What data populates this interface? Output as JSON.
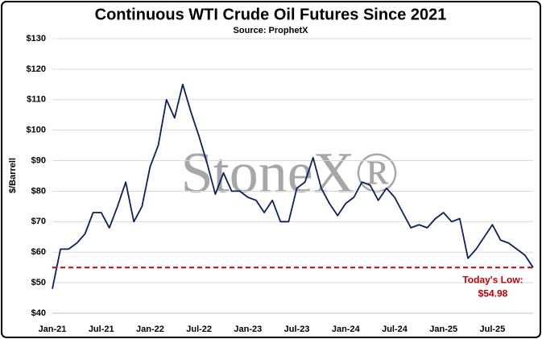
{
  "chart_data": {
    "type": "line",
    "title": "Continuous WTI Crude Oil Futures Since 2021",
    "subtitle": "Source: ProphetX",
    "y_label": "$/Barrell",
    "watermark": "StoneX®",
    "x": [
      "Jan-21",
      "Feb-21",
      "Mar-21",
      "Apr-21",
      "May-21",
      "Jun-21",
      "Jul-21",
      "Aug-21",
      "Sep-21",
      "Oct-21",
      "Nov-21",
      "Dec-21",
      "Jan-22",
      "Feb-22",
      "Mar-22",
      "Apr-22",
      "May-22",
      "Jun-22",
      "Jul-22",
      "Aug-22",
      "Sep-22",
      "Oct-22",
      "Nov-22",
      "Dec-22",
      "Jan-23",
      "Feb-23",
      "Mar-23",
      "Apr-23",
      "May-23",
      "Jun-23",
      "Jul-23",
      "Aug-23",
      "Sep-23",
      "Oct-23",
      "Nov-23",
      "Dec-23",
      "Jan-24",
      "Feb-24",
      "Mar-24",
      "Apr-24",
      "May-24",
      "Jun-24",
      "Jul-24",
      "Aug-24",
      "Sep-24",
      "Oct-24",
      "Nov-24",
      "Dec-24",
      "Jan-25",
      "Feb-25",
      "Mar-25",
      "Apr-25",
      "May-25",
      "Jun-25",
      "Jul-25",
      "Aug-25",
      "Sep-25",
      "Oct-25",
      "Nov-25",
      "Dec-25"
    ],
    "xticks": [
      "Jan-21",
      "Jul-21",
      "Jan-22",
      "Jul-22",
      "Jan-23",
      "Jul-23",
      "Jan-24",
      "Jul-24",
      "Jan-25",
      "Jul-25"
    ],
    "series": [
      {
        "name": "WTI",
        "color": "#0d1f5c",
        "values": [
          48,
          61,
          61,
          63,
          66,
          73,
          73,
          68,
          75,
          83,
          70,
          75,
          88,
          95,
          110,
          104,
          115,
          106,
          98,
          89,
          79,
          86,
          80,
          80,
          78,
          77,
          73,
          77,
          70,
          70,
          81,
          83,
          91,
          81,
          76,
          72,
          76,
          78,
          83,
          82,
          77,
          81,
          78,
          73,
          68,
          69,
          68,
          71,
          73,
          70,
          71,
          58,
          61,
          65,
          69,
          64,
          63,
          61,
          59,
          54.98
        ]
      }
    ],
    "ylim": [
      40,
      130
    ],
    "yticks": [
      {
        "value": 40,
        "label": "$40"
      },
      {
        "value": 50,
        "label": "$50"
      },
      {
        "value": 60,
        "label": "$60"
      },
      {
        "value": 70,
        "label": "$70"
      },
      {
        "value": 80,
        "label": "$80"
      },
      {
        "value": 90,
        "label": "$90"
      },
      {
        "value": 100,
        "label": "$100"
      },
      {
        "value": 110,
        "label": "$110"
      },
      {
        "value": 120,
        "label": "$120"
      },
      {
        "value": 130,
        "label": "$130"
      }
    ],
    "grid": true,
    "reference_line": {
      "value": 54.98,
      "label": "Today's Low:",
      "value_label": "$54.98",
      "color": "#c00000"
    }
  }
}
